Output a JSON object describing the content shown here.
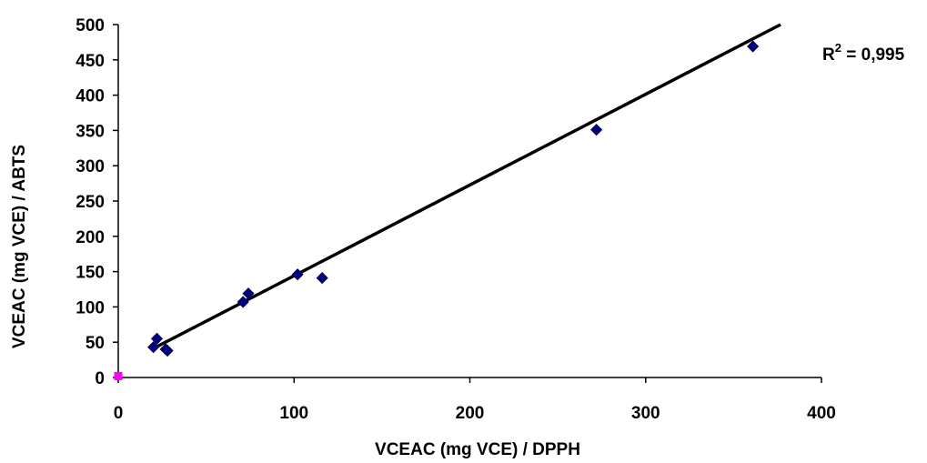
{
  "chart_data": {
    "type": "scatter",
    "xlabel": "VCEAC (mg VCE) / DPPH",
    "ylabel": "VCEAC (mg VCE) / ABTS",
    "xlim": [
      0,
      400
    ],
    "ylim": [
      0,
      500
    ],
    "x_ticks": [
      0,
      100,
      200,
      300,
      400
    ],
    "y_ticks": [
      0,
      50,
      100,
      150,
      200,
      250,
      300,
      350,
      400,
      450,
      500
    ],
    "grid": false,
    "legend": "none",
    "series": [
      {
        "marker": "diamond",
        "color": "#000080",
        "points": [
          {
            "x": 20,
            "y": 43
          },
          {
            "x": 22,
            "y": 55
          },
          {
            "x": 27,
            "y": 40
          },
          {
            "x": 28,
            "y": 38
          },
          {
            "x": 71,
            "y": 107
          },
          {
            "x": 74,
            "y": 119
          },
          {
            "x": 102,
            "y": 146
          },
          {
            "x": 116,
            "y": 141
          },
          {
            "x": 272,
            "y": 351
          },
          {
            "x": 361,
            "y": 469
          }
        ]
      },
      {
        "marker": "square",
        "color": "#FF00FF",
        "points": [
          {
            "x": 0,
            "y": 2
          }
        ]
      }
    ],
    "trendline": {
      "type": "linear",
      "x_start": 20,
      "x_end": 392,
      "slope": 1.286,
      "intercept": 15.5,
      "color": "#000000"
    },
    "annotation": {
      "r2_prefix": "R",
      "r2_sup": "2",
      "r2_value": " = 0,995"
    }
  }
}
